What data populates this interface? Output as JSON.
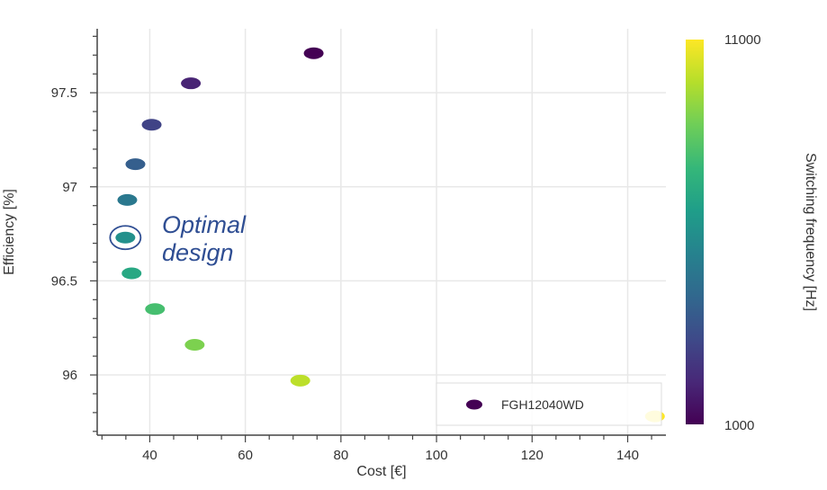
{
  "chart_data": {
    "type": "scatter",
    "title": "",
    "xlabel": "Cost [€]",
    "ylabel": "Efficiency [%]",
    "xlim": [
      29,
      148
    ],
    "ylim": [
      95.68,
      97.84
    ],
    "xticks": [
      40,
      60,
      80,
      100,
      120,
      140
    ],
    "yticks": [
      96,
      96.5,
      97,
      97.5
    ],
    "xtick_labels": [
      "40",
      "60",
      "80",
      "100",
      "120",
      "140"
    ],
    "ytick_labels": [
      "96",
      "96.5",
      "97",
      "97.5"
    ],
    "grid": true,
    "series": [
      {
        "name": "FGH12040WD",
        "points": [
          {
            "x": 74.3,
            "y": 97.71,
            "f": 1000
          },
          {
            "x": 48.6,
            "y": 97.55,
            "f": 2000
          },
          {
            "x": 40.4,
            "y": 97.33,
            "f": 3000
          },
          {
            "x": 37.0,
            "y": 97.12,
            "f": 4000
          },
          {
            "x": 35.3,
            "y": 96.93,
            "f": 5000
          },
          {
            "x": 34.9,
            "y": 96.73,
            "f": 6000
          },
          {
            "x": 36.2,
            "y": 96.54,
            "f": 7000
          },
          {
            "x": 41.1,
            "y": 96.35,
            "f": 8000
          },
          {
            "x": 49.4,
            "y": 96.16,
            "f": 9000
          },
          {
            "x": 71.5,
            "y": 95.97,
            "f": 10000
          },
          {
            "x": 145.7,
            "y": 95.78,
            "f": 11000
          }
        ]
      }
    ],
    "legend": {
      "placement": "bottom-right",
      "label": "FGH12040WD",
      "marker_color": "#440154"
    },
    "annotation": {
      "text_line1": "Optimal",
      "text_line2": "design",
      "target": {
        "x": 34.9,
        "y": 96.73
      },
      "color": "#2f4e93"
    },
    "colorbar": {
      "label": "Switching frequency [Hz]",
      "min": 1000,
      "max": 11000,
      "min_label": "1000",
      "max_label": "11000",
      "colormap": "viridis",
      "colors": [
        "#440154",
        "#482878",
        "#3e4a89",
        "#31688e",
        "#26828e",
        "#1f9e89",
        "#35b779",
        "#6ece58",
        "#b5de2b",
        "#fde725"
      ]
    },
    "colors": {
      "grid": "#e8e8e8",
      "axis": "#444444",
      "tick": "#444444"
    }
  }
}
